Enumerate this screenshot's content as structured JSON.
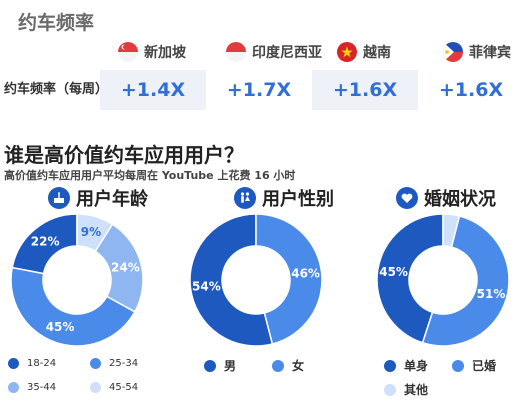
{
  "frequency": {
    "title": "约车频率",
    "row_label": "约车频率（每周）",
    "countries": [
      {
        "name": "新加坡",
        "flag": "sg-flag-icon",
        "value": "+1.4X"
      },
      {
        "name": "印度尼西亚",
        "flag": "id-flag-icon",
        "value": "+1.7X"
      },
      {
        "name": "越南",
        "flag": "vn-flag-icon",
        "value": "+1.6X"
      },
      {
        "name": "菲律宾",
        "flag": "ph-flag-icon",
        "value": "+1.6X"
      }
    ]
  },
  "users": {
    "title": "谁是高价值约车应用用户？",
    "subtitle": "高价值约车应用用户平均每周在 YouTube 上花费 16 小时"
  },
  "colors": {
    "dark": "#1e59c0",
    "mid": "#4a8ae8",
    "light": "#8fb6f0",
    "pale": "#cfe0fa",
    "accent": "#2f6fd6"
  },
  "chart_data": [
    {
      "type": "pie",
      "title": "用户年龄",
      "icon": "cake-icon",
      "categories": [
        "18-24",
        "25-34",
        "35-44",
        "45-54"
      ],
      "values": [
        22,
        45,
        24,
        9
      ],
      "labels": [
        "22%",
        "45%",
        "24%",
        "9%"
      ],
      "colors": [
        "#1e59c0",
        "#4a8ae8",
        "#8fb6f0",
        "#cfe0fa"
      ]
    },
    {
      "type": "pie",
      "title": "用户性别",
      "icon": "people-icon",
      "categories": [
        "男",
        "女"
      ],
      "values": [
        54,
        46
      ],
      "labels": [
        "54%",
        "46%"
      ],
      "colors": [
        "#1e59c0",
        "#4a8ae8"
      ]
    },
    {
      "type": "pie",
      "title": "婚姻状况",
      "icon": "heart-icon",
      "categories": [
        "单身",
        "已婚",
        "其他"
      ],
      "values": [
        45,
        51,
        4
      ],
      "labels": [
        "45%",
        "51%",
        ""
      ],
      "colors": [
        "#1e59c0",
        "#4a8ae8",
        "#cfe0fa"
      ]
    }
  ]
}
